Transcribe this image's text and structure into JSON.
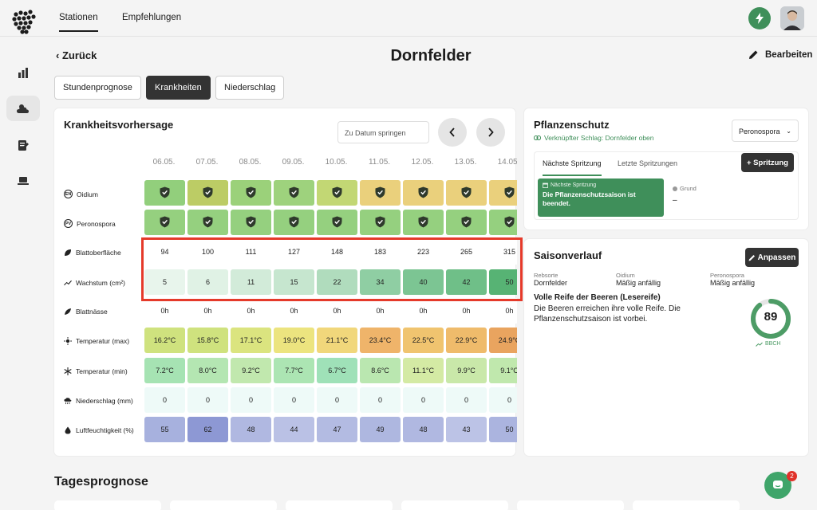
{
  "nav": {
    "tabs": [
      "Stationen",
      "Empfehlungen"
    ]
  },
  "header": {
    "back_label": "Zurück",
    "title": "Dornfelder",
    "edit_label": "Bearbeiten"
  },
  "subtabs": [
    "Stundenprognose",
    "Krankheiten",
    "Niederschlag"
  ],
  "forecast": {
    "title": "Krankheitsvorhersage",
    "date_placeholder": "Zu Datum springen",
    "dates": [
      "06.05.",
      "07.05.",
      "08.05.",
      "09.05.",
      "10.05.",
      "11.05.",
      "12.05.",
      "13.05.",
      "14.05."
    ],
    "rows": [
      {
        "label": "Oidium",
        "badge": "EN",
        "type": "shield",
        "colors": [
          "#92cf7c",
          "#bccc65",
          "#9bd17a",
          "#9ed27d",
          "#c2d774",
          "#ead07c",
          "#ead07c",
          "#ead07c",
          "#ead07c"
        ]
      },
      {
        "label": "Peronospora",
        "badge": "PV",
        "type": "shield",
        "colors": [
          "#95d07f",
          "#95d07f",
          "#95d07f",
          "#95d07f",
          "#95d07f",
          "#95d07f",
          "#95d07f",
          "#95d07f",
          "#95d07f"
        ]
      },
      {
        "label": "Blattoberfläche",
        "icon": "leaf",
        "type": "text",
        "values": [
          "94",
          "100",
          "111",
          "127",
          "148",
          "183",
          "223",
          "265",
          "315"
        ],
        "colors": [
          "#ffffff",
          "#ffffff",
          "#ffffff",
          "#ffffff",
          "#ffffff",
          "#ffffff",
          "#ffffff",
          "#ffffff",
          "#ffffff"
        ]
      },
      {
        "label": "Wachstum (cm²)",
        "icon": "trend",
        "type": "text",
        "values": [
          "5",
          "6",
          "11",
          "15",
          "22",
          "34",
          "40",
          "42",
          "50"
        ],
        "colors": [
          "#e8f5ec",
          "#e0f2e5",
          "#d2ebd9",
          "#c6e6cf",
          "#b0dcbd",
          "#8fceA3",
          "#7cc593",
          "#6fbf88",
          "#57b374"
        ]
      },
      {
        "label": "Blattnässe",
        "icon": "leaf2",
        "type": "text",
        "values": [
          "0h",
          "0h",
          "0h",
          "0h",
          "0h",
          "0h",
          "0h",
          "0h",
          "0h"
        ],
        "colors": [
          "#ffffff",
          "#ffffff",
          "#ffffff",
          "#ffffff",
          "#ffffff",
          "#ffffff",
          "#ffffff",
          "#ffffff",
          "#ffffff"
        ]
      },
      {
        "label": "Temperatur (max)",
        "icon": "sun",
        "type": "text",
        "values": [
          "16.2°C",
          "15.8°C",
          "17.1°C",
          "19.0°C",
          "21.1°C",
          "23.4°C",
          "22.5°C",
          "22.9°C",
          "24.9°C"
        ],
        "colors": [
          "#cfe27e",
          "#cfe27e",
          "#dbe47f",
          "#ece47f",
          "#f1d77b",
          "#efb46a",
          "#f0c46f",
          "#efbb6b",
          "#e9a45f"
        ]
      },
      {
        "label": "Temperatur (min)",
        "icon": "snow",
        "type": "text",
        "values": [
          "7.2°C",
          "8.0°C",
          "9.2°C",
          "7.7°C",
          "6.7°C",
          "8.6°C",
          "11.1°C",
          "9.9°C",
          "9.1°C"
        ],
        "colors": [
          "#a6e3b3",
          "#b4e6b2",
          "#c1e8ae",
          "#ace5b3",
          "#9fe1b8",
          "#bae7b0",
          "#d4eaa4",
          "#c9e8a9",
          "#c0e8ad"
        ]
      },
      {
        "label": "Niederschlag (mm)",
        "icon": "cloud",
        "type": "text",
        "values": [
          "0",
          "0",
          "0",
          "0",
          "0",
          "0",
          "0",
          "0",
          "0"
        ],
        "colors": [
          "#eefaf8",
          "#eefaf8",
          "#eefaf8",
          "#eefaf8",
          "#eefaf8",
          "#eefaf8",
          "#eefaf8",
          "#eefaf8",
          "#eefaf8"
        ]
      },
      {
        "label": "Luftfeuchtigkeit (%)",
        "icon": "drop",
        "type": "text",
        "values": [
          "55",
          "62",
          "48",
          "44",
          "47",
          "49",
          "48",
          "43",
          "50"
        ],
        "colors": [
          "#a7b1de",
          "#8d98d4",
          "#b0b8e1",
          "#bac1e5",
          "#b3bbe2",
          "#aeb7e0",
          "#b0b8e1",
          "#bcc3e6",
          "#abb4df"
        ]
      }
    ]
  },
  "protection": {
    "title": "Pflanzenschutz",
    "linked": "Verknüpfter Schlag: Dornfelder oben",
    "dropdown": "Peronospora",
    "tab_next": "Nächste Spritzung",
    "tab_last": "Letzte Spritzungen",
    "add_label": "+ Spritzung",
    "next_label": "Nächste Spritzung",
    "next_text": "Die Pflanzenschutzsaison ist beendet.",
    "reason_label": "Grund",
    "reason_value": "–"
  },
  "season": {
    "title": "Saisonverlauf",
    "adjust_label": "Anpassen",
    "rebsorte_label": "Rebsorte",
    "rebsorte_value": "Dornfelder",
    "oidium_label": "Oidium",
    "oidium_value": "Mäßig anfällig",
    "pero_label": "Peronospora",
    "pero_value": "Mäßig anfällig",
    "stage_title": "Volle Reife der Beeren (Lesereife)",
    "stage_text": "Die Beeren erreichen ihre volle Reife. Die Pflanzenschutzsaison ist vorbei.",
    "bbch_value": "89",
    "bbch_label": "BBCH"
  },
  "daily": {
    "title": "Tagesprognose"
  },
  "chat": {
    "badge": "2"
  },
  "colors": {
    "accent": "#3f8f5a",
    "highlight": "#e53a2a",
    "dark": "#333333"
  }
}
